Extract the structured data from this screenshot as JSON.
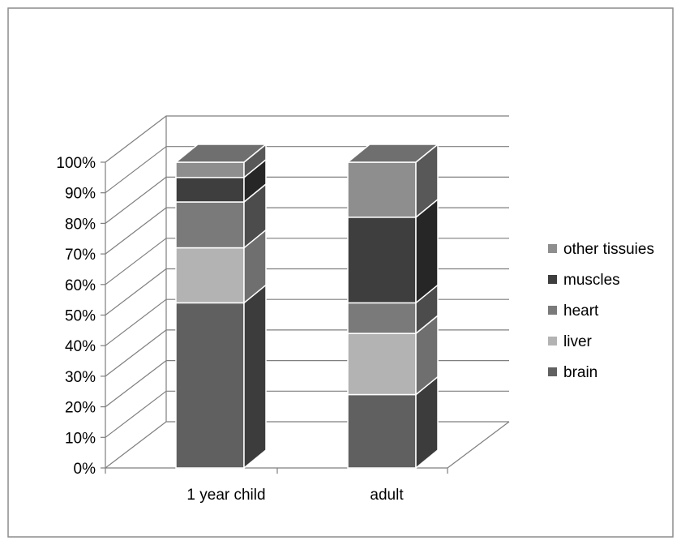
{
  "chart_data": {
    "type": "bar",
    "stacked": true,
    "three_d": true,
    "categories": [
      "1 year child",
      "adult"
    ],
    "series": [
      {
        "name": "brain",
        "values": [
          54,
          24
        ],
        "color": "#606060"
      },
      {
        "name": "liver",
        "values": [
          18,
          20
        ],
        "color": "#b3b3b3"
      },
      {
        "name": "heart",
        "values": [
          15,
          10
        ],
        "color": "#7a7a7a"
      },
      {
        "name": "muscles",
        "values": [
          8,
          28
        ],
        "color": "#3e3e3e"
      },
      {
        "name": "other tissuies",
        "values": [
          5,
          18
        ],
        "color": "#8e8e8e"
      }
    ],
    "y_ticks": [
      "0%",
      "10%",
      "20%",
      "30%",
      "40%",
      "50%",
      "60%",
      "70%",
      "80%",
      "90%",
      "100%"
    ],
    "ylim": [
      0,
      100
    ],
    "grid": true,
    "legend_position": "right",
    "legend_order": [
      "other tissuies",
      "muscles",
      "heart",
      "liver",
      "brain"
    ]
  }
}
